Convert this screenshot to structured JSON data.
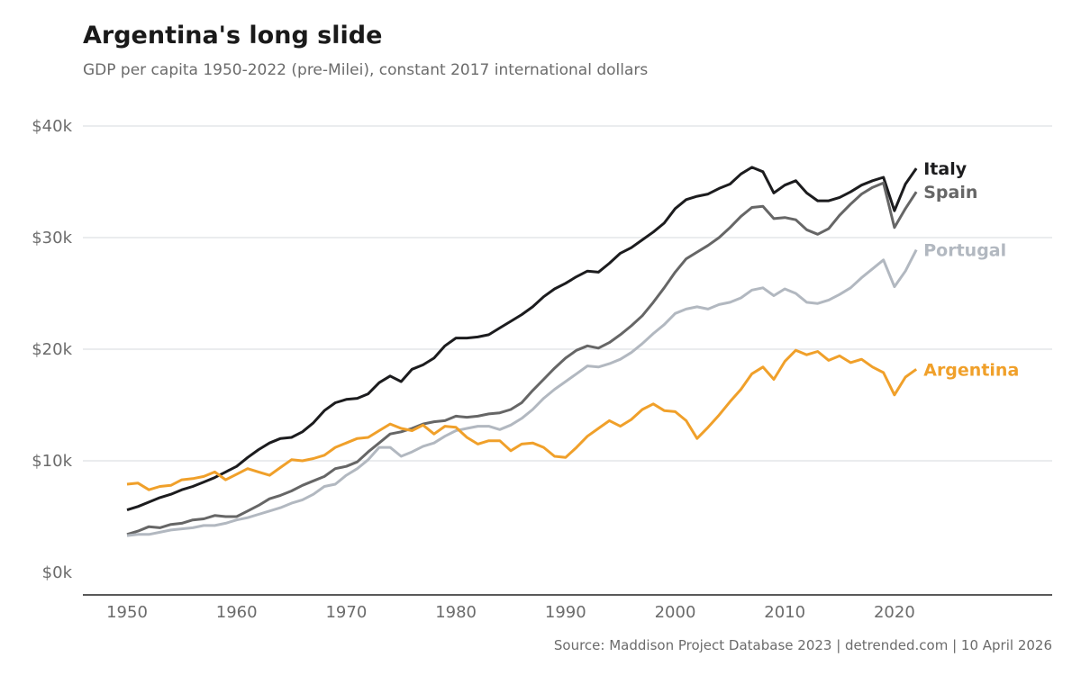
{
  "chart_data": {
    "type": "line",
    "title": "Argentina's long slide",
    "subtitle": "GDP per capita 1950-2022 (pre-Milei), constant 2017 international dollars",
    "source": "Source: Maddison Project Database 2023 | detrended.com | 10 April 2026",
    "xlabel": "",
    "ylabel": "",
    "xlim": [
      1946,
      2032
    ],
    "ylim": [
      0,
      40000
    ],
    "grid": true,
    "legend": "direct labels at line ends",
    "x_ticks": [
      1950,
      1960,
      1970,
      1980,
      1990,
      2000,
      2010,
      2020
    ],
    "x_tick_labels": [
      "1950",
      "1960",
      "1970",
      "1980",
      "1990",
      "2000",
      "2010",
      "2020"
    ],
    "y_ticks": [
      0,
      10000,
      20000,
      30000,
      40000
    ],
    "y_tick_labels": [
      "$0k",
      "$10k",
      "$20k",
      "$30k",
      "$40k"
    ],
    "x_start": 1950,
    "series": [
      {
        "name": "Italy",
        "color": "#1c1c1e",
        "values_k": [
          5.6,
          5.9,
          6.3,
          6.7,
          7.0,
          7.4,
          7.7,
          8.1,
          8.5,
          9.0,
          9.5,
          10.3,
          11.0,
          11.6,
          12.0,
          12.1,
          12.6,
          13.4,
          14.5,
          15.2,
          15.5,
          15.6,
          16.0,
          17.0,
          17.6,
          17.1,
          18.2,
          18.6,
          19.2,
          20.3,
          21.0,
          21.0,
          21.1,
          21.3,
          21.9,
          22.5,
          23.1,
          23.8,
          24.7,
          25.4,
          25.9,
          26.5,
          27.0,
          26.9,
          27.7,
          28.6,
          29.1,
          29.8,
          30.5,
          31.3,
          32.6,
          33.4,
          33.7,
          33.9,
          34.4,
          34.8,
          35.7,
          36.3,
          35.9,
          34.0,
          34.7,
          35.1,
          34.0,
          33.3,
          33.3,
          33.6,
          34.1,
          34.7,
          35.1,
          35.4,
          32.4,
          34.8,
          36.2
        ]
      },
      {
        "name": "Spain",
        "color": "#666666",
        "values_k": [
          3.4,
          3.7,
          4.1,
          4.0,
          4.3,
          4.4,
          4.7,
          4.8,
          5.1,
          5.0,
          5.0,
          5.5,
          6.0,
          6.6,
          6.9,
          7.3,
          7.8,
          8.2,
          8.6,
          9.3,
          9.5,
          9.9,
          10.8,
          11.6,
          12.4,
          12.6,
          12.9,
          13.3,
          13.5,
          13.6,
          14.0,
          13.9,
          14.0,
          14.2,
          14.3,
          14.6,
          15.2,
          16.3,
          17.3,
          18.3,
          19.2,
          19.9,
          20.3,
          20.1,
          20.6,
          21.3,
          22.1,
          23.0,
          24.2,
          25.5,
          26.9,
          28.1,
          28.7,
          29.3,
          30.0,
          30.9,
          31.9,
          32.7,
          32.8,
          31.7,
          31.8,
          31.6,
          30.7,
          30.3,
          30.8,
          32.0,
          33.0,
          33.9,
          34.5,
          34.9,
          30.9,
          32.6,
          34.1
        ]
      },
      {
        "name": "Portugal",
        "color": "#b2b8c0",
        "values_k": [
          3.3,
          3.4,
          3.4,
          3.6,
          3.8,
          3.9,
          4.0,
          4.2,
          4.2,
          4.4,
          4.7,
          4.9,
          5.2,
          5.5,
          5.8,
          6.2,
          6.5,
          7.0,
          7.7,
          7.9,
          8.7,
          9.3,
          10.1,
          11.2,
          11.2,
          10.4,
          10.8,
          11.3,
          11.6,
          12.2,
          12.7,
          12.9,
          13.1,
          13.1,
          12.8,
          13.2,
          13.8,
          14.6,
          15.6,
          16.4,
          17.1,
          17.8,
          18.5,
          18.4,
          18.7,
          19.1,
          19.7,
          20.5,
          21.4,
          22.2,
          23.2,
          23.6,
          23.8,
          23.6,
          24.0,
          24.2,
          24.6,
          25.3,
          25.5,
          24.8,
          25.4,
          25.0,
          24.2,
          24.1,
          24.4,
          24.9,
          25.5,
          26.4,
          27.2,
          28.0,
          25.6,
          27.0,
          28.9
        ]
      },
      {
        "name": "Argentina",
        "color": "#f0a02a",
        "values_k": [
          7.9,
          8.0,
          7.4,
          7.7,
          7.8,
          8.3,
          8.4,
          8.6,
          9.0,
          8.3,
          8.8,
          9.3,
          9.0,
          8.7,
          9.4,
          10.1,
          10.0,
          10.2,
          10.5,
          11.2,
          11.6,
          12.0,
          12.1,
          12.7,
          13.3,
          12.9,
          12.7,
          13.2,
          12.4,
          13.1,
          13.0,
          12.1,
          11.5,
          11.8,
          11.8,
          10.9,
          11.5,
          11.6,
          11.2,
          10.4,
          10.3,
          11.2,
          12.2,
          12.9,
          13.6,
          13.1,
          13.7,
          14.6,
          15.1,
          14.5,
          14.4,
          13.6,
          12.0,
          13.0,
          14.1,
          15.3,
          16.4,
          17.8,
          18.4,
          17.3,
          18.9,
          19.9,
          19.5,
          19.8,
          19.0,
          19.4,
          18.8,
          19.1,
          18.4,
          17.9,
          15.9,
          17.5,
          18.2
        ]
      }
    ]
  }
}
